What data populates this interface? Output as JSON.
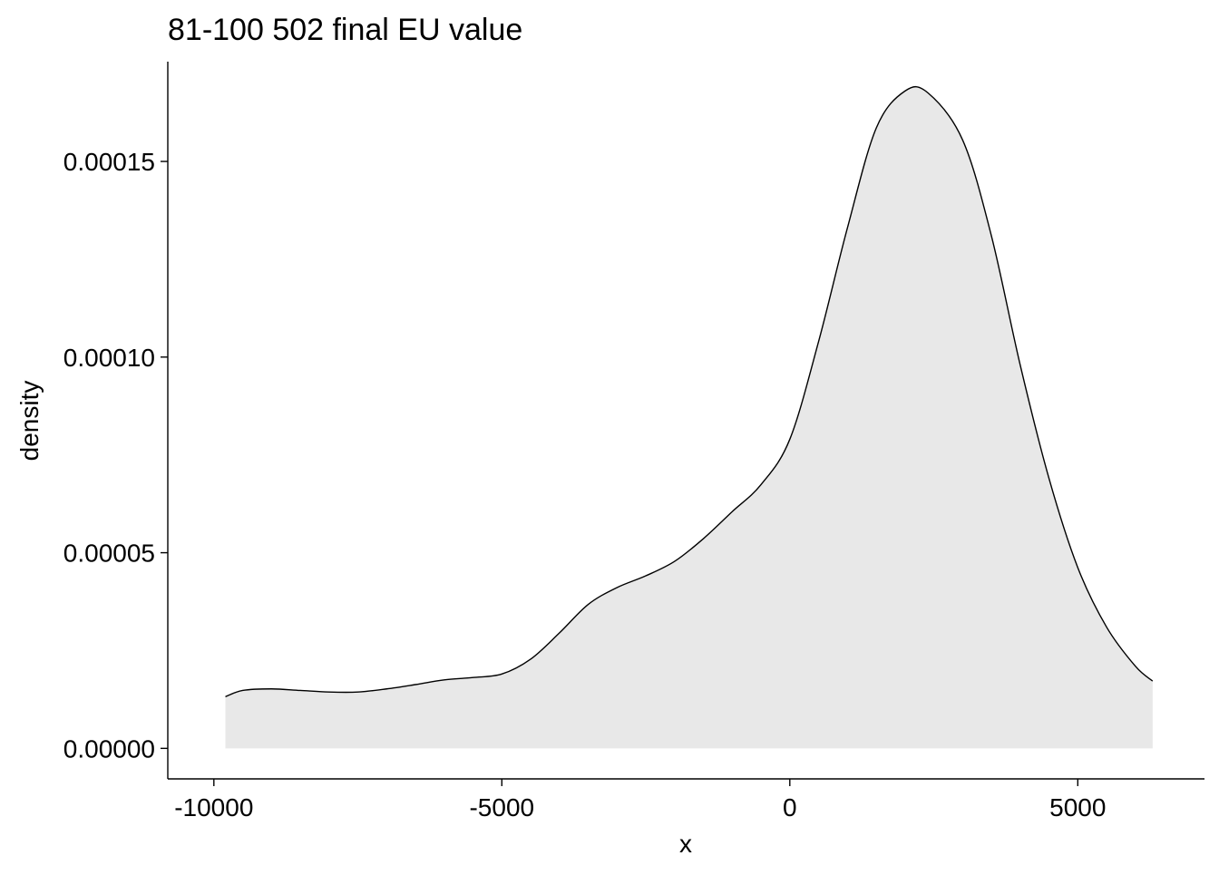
{
  "chart_data": {
    "type": "area",
    "title": "81-100 502 final EU value",
    "xlabel": "x",
    "ylabel": "density",
    "xlim": [
      -10800,
      7200
    ],
    "ylim": [
      -7.8e-06,
      0.0001755
    ],
    "x_ticks": [
      -10000,
      -5000,
      0,
      5000
    ],
    "x_tick_labels": [
      "-10000",
      "-5000",
      "0",
      "5000"
    ],
    "y_ticks": [
      0,
      5e-05,
      0.0001,
      0.00015
    ],
    "y_tick_labels": [
      "0.00000",
      "0.00005",
      "0.00010",
      "0.00015"
    ],
    "grid": false,
    "legend": "none",
    "fill_color": "#e8e8e8",
    "line_color": "#000000",
    "series": [
      {
        "x": [
          -9800,
          -9500,
          -9000,
          -8500,
          -8000,
          -7500,
          -7000,
          -6500,
          -6000,
          -5500,
          -5000,
          -4500,
          -4000,
          -3500,
          -3000,
          -2500,
          -2000,
          -1500,
          -1000,
          -500,
          0,
          500,
          1000,
          1500,
          2000,
          2400,
          3000,
          3500,
          4000,
          4500,
          5000,
          5500,
          6000,
          6300
        ],
        "y": [
          1.32e-05,
          1.48e-05,
          1.52e-05,
          1.48e-05,
          1.44e-05,
          1.44e-05,
          1.52e-05,
          1.63e-05,
          1.75e-05,
          1.81e-05,
          1.9e-05,
          2.28e-05,
          2.95e-05,
          3.68e-05,
          4.11e-05,
          4.41e-05,
          4.78e-05,
          5.36e-05,
          6.05e-05,
          6.74e-05,
          7.9e-05,
          0.000104,
          0.000133,
          0.0001585,
          0.000168,
          0.0001675,
          0.0001555,
          0.000131,
          9.8e-05,
          6.9e-05,
          4.62e-05,
          3.1e-05,
          2.1e-05,
          1.72e-05
        ]
      }
    ]
  }
}
